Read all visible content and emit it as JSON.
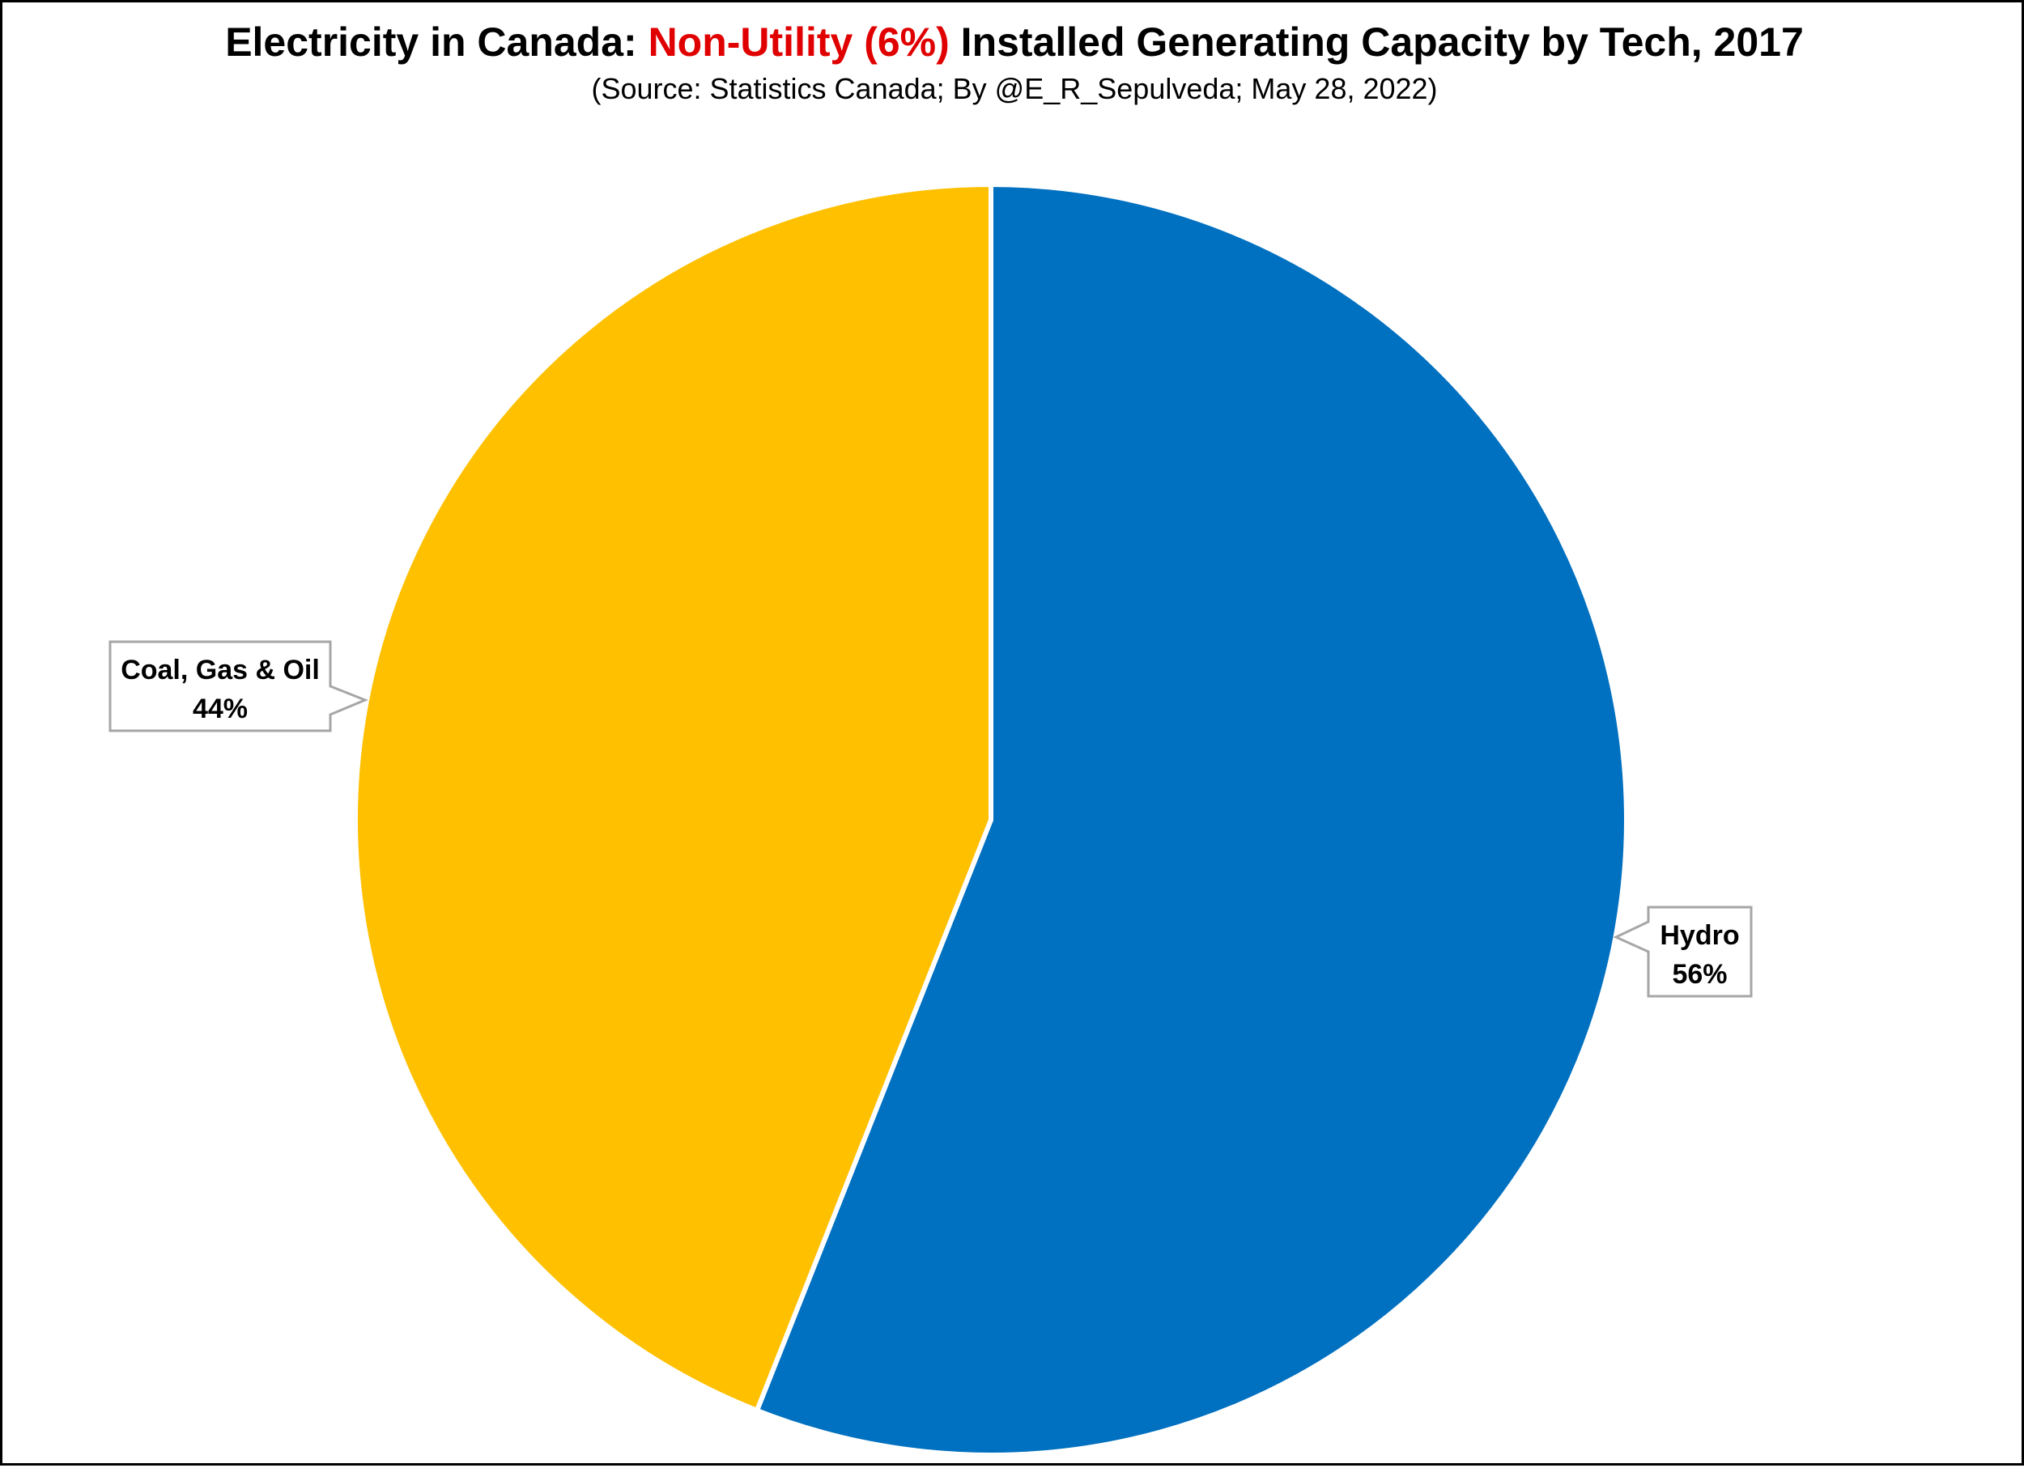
{
  "chart_data": {
    "type": "pie",
    "title": {
      "prefix": "Electricity in Canada: ",
      "highlight": "Non-Utility (6%)",
      "suffix": " Installed Generating Capacity by Tech, 2017",
      "highlight_color": "#e00000"
    },
    "subtitle": "(Source: Statistics Canada; By @E_R_Sepulveda; May 28, 2022)",
    "slices": [
      {
        "label": "Hydro",
        "value": 56,
        "value_label": "56%",
        "color": "#0070c0"
      },
      {
        "label": "Coal, Gas & Oil",
        "value": 44,
        "value_label": "44%",
        "color": "#ffc000"
      }
    ],
    "start": "12 o'clock, clockwise",
    "legend": "none",
    "data_labels": "callout"
  }
}
